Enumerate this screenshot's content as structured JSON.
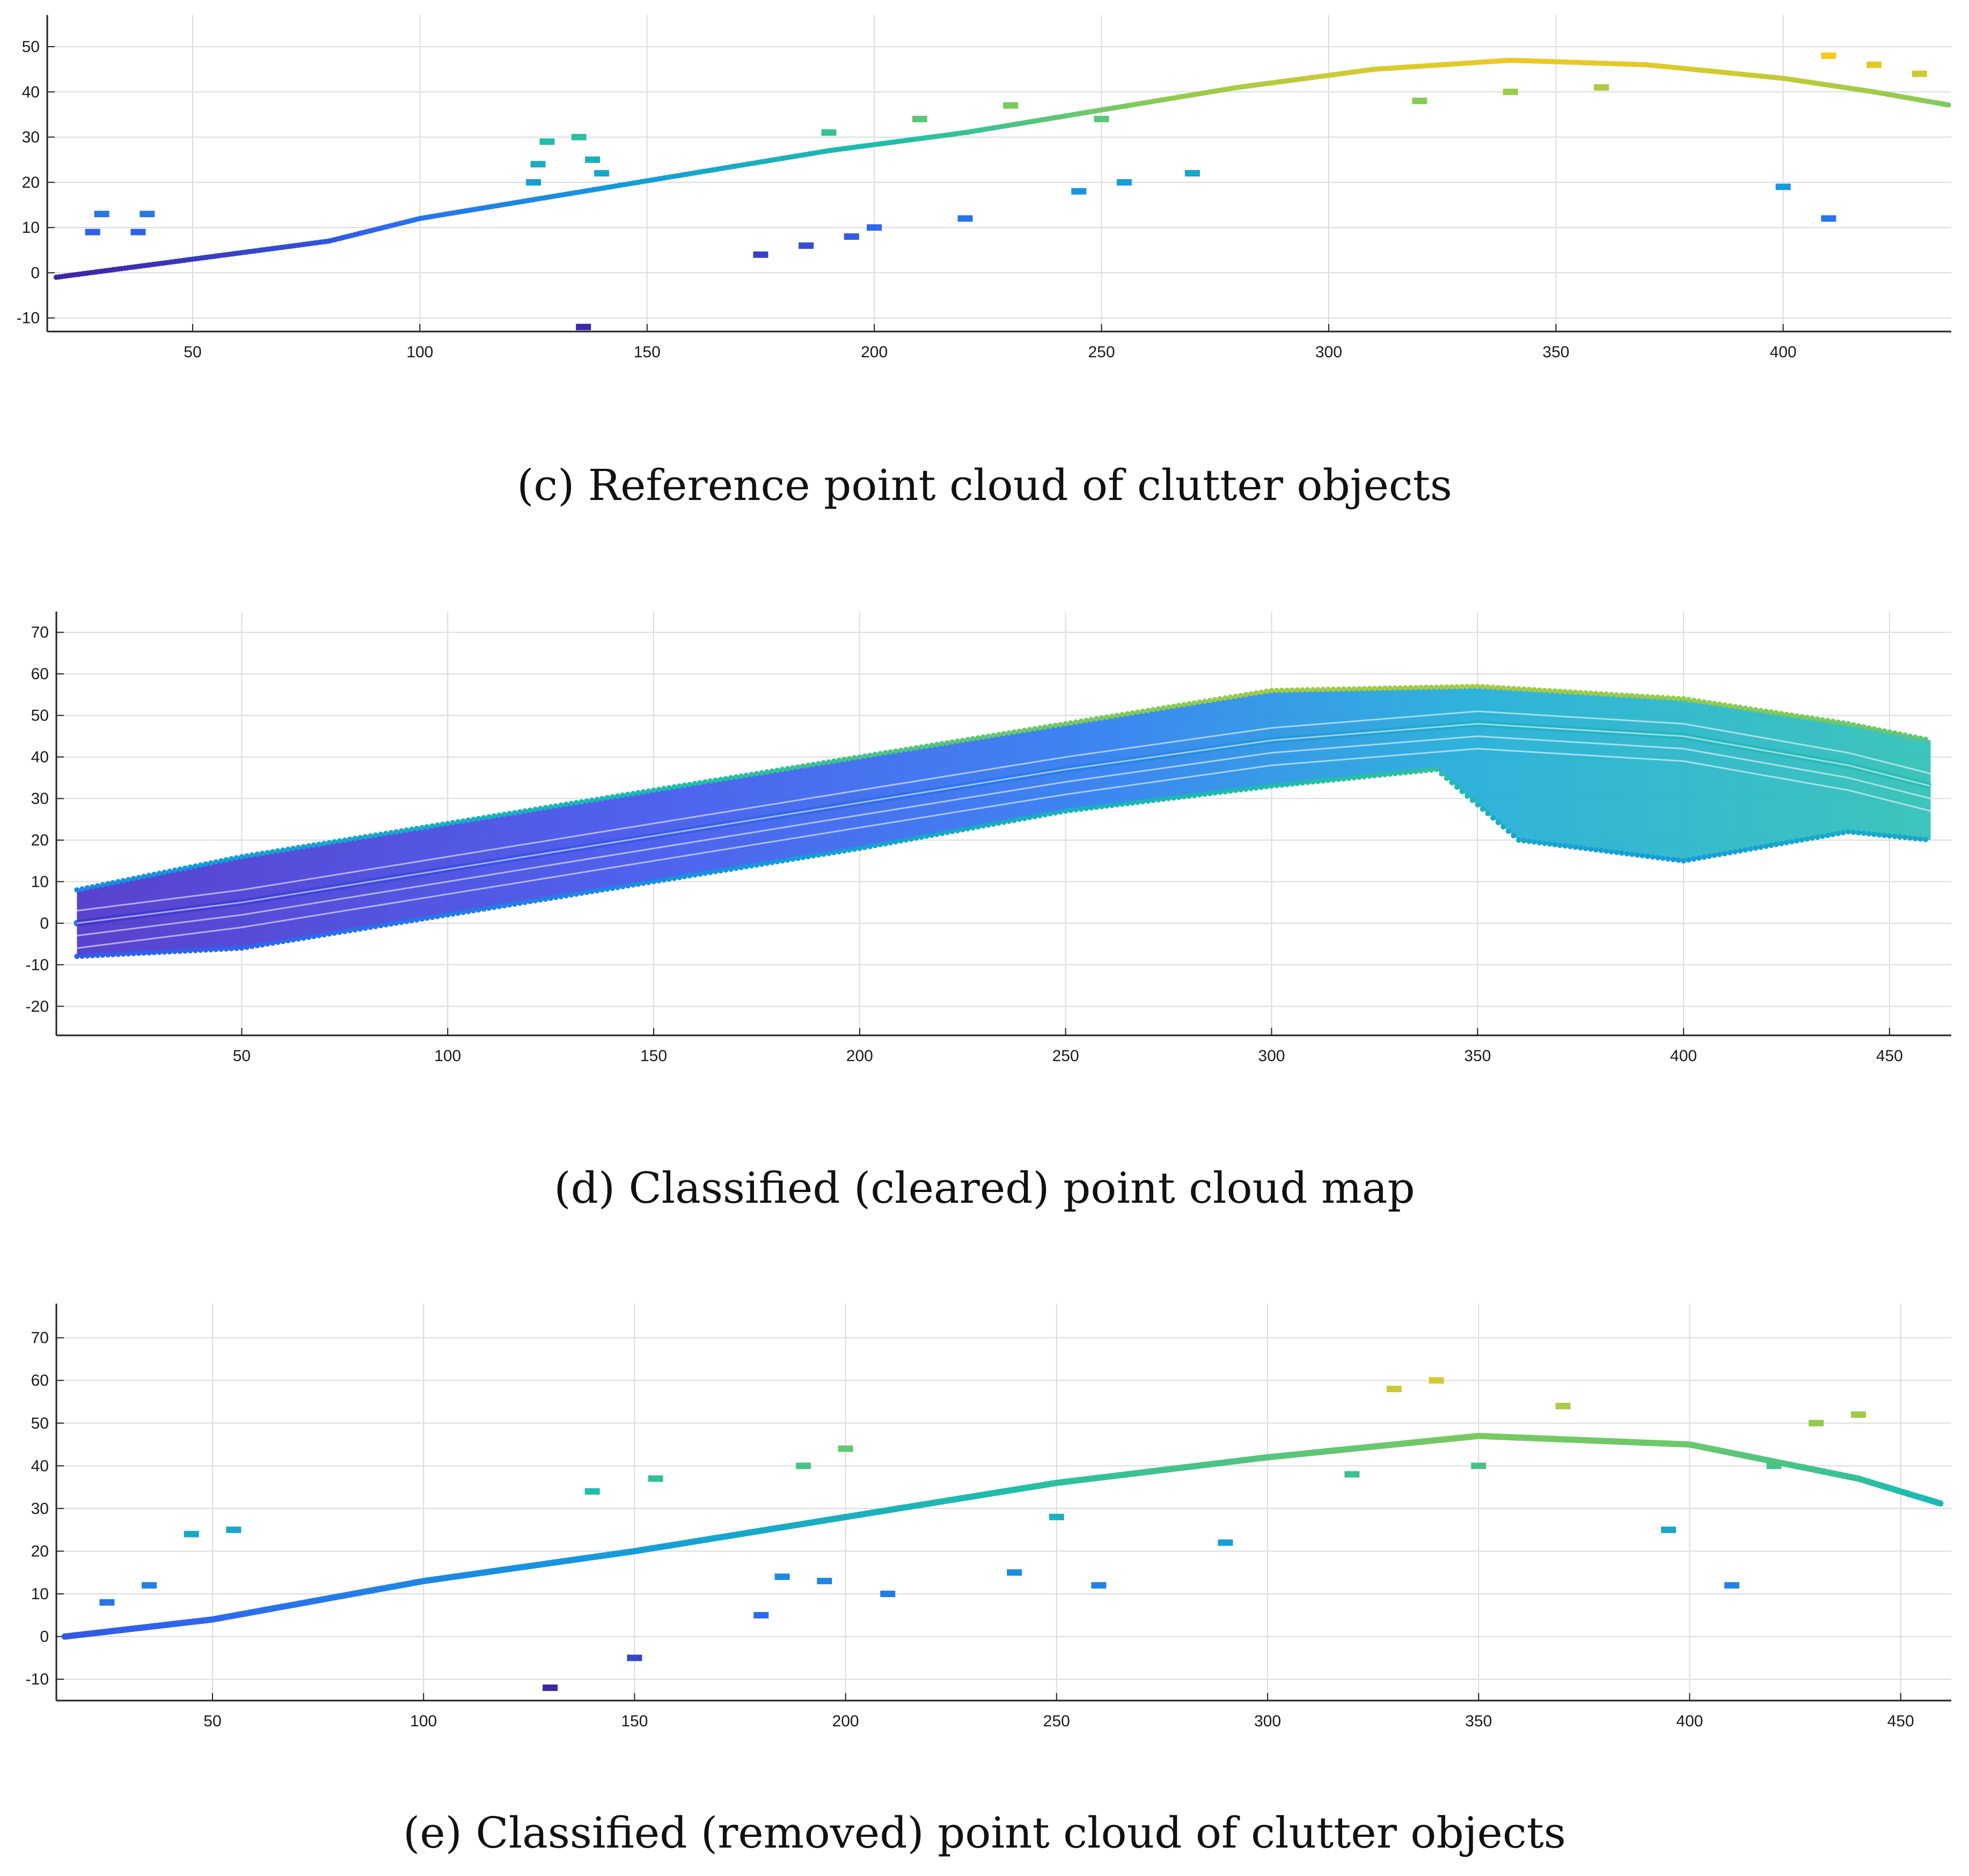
{
  "figure": {
    "panels": [
      {
        "id": "c",
        "caption": "(c) Reference point cloud of clutter objects"
      },
      {
        "id": "d",
        "caption": "(d) Classified (cleared) point cloud map"
      },
      {
        "id": "e",
        "caption": "(e) Classified (removed) point cloud of clutter objects"
      }
    ]
  },
  "chart_data": [
    {
      "type": "scatter",
      "title": "(c) Reference point cloud of clutter objects",
      "xlabel": "",
      "ylabel": "",
      "xlim": [
        18,
        437
      ],
      "ylim": [
        -13,
        57
      ],
      "xticks": [
        50,
        100,
        150,
        200,
        250,
        300,
        350,
        400
      ],
      "yticks": [
        -10,
        0,
        10,
        20,
        30,
        40,
        50
      ],
      "grid": true,
      "colormap": "parula",
      "color_range": [
        0,
        48
      ],
      "series": [
        {
          "name": "road edge curve",
          "points": [
            [
              20,
              -1
            ],
            [
              50,
              3
            ],
            [
              80,
              7
            ],
            [
              100,
              12
            ],
            [
              130,
              17
            ],
            [
              160,
              22
            ],
            [
              190,
              27
            ],
            [
              220,
              31
            ],
            [
              250,
              36
            ],
            [
              280,
              41
            ],
            [
              310,
              45
            ],
            [
              340,
              47
            ],
            [
              370,
              46
            ],
            [
              400,
              43
            ],
            [
              420,
              40
            ],
            [
              437,
              37
            ]
          ]
        },
        {
          "name": "clutter clusters",
          "points": [
            [
              28,
              9
            ],
            [
              38,
              9
            ],
            [
              30,
              13
            ],
            [
              40,
              13
            ],
            [
              125,
              20
            ],
            [
              140,
              22
            ],
            [
              126,
              24
            ],
            [
              138,
              25
            ],
            [
              128,
              29
            ],
            [
              135,
              30
            ],
            [
              175,
              4
            ],
            [
              185,
              6
            ],
            [
              195,
              8
            ],
            [
              200,
              10
            ],
            [
              220,
              12
            ],
            [
              245,
              18
            ],
            [
              255,
              20
            ],
            [
              270,
              22
            ],
            [
              190,
              31
            ],
            [
              210,
              34
            ],
            [
              230,
              37
            ],
            [
              250,
              34
            ],
            [
              320,
              38
            ],
            [
              340,
              40
            ],
            [
              360,
              41
            ],
            [
              410,
              48
            ],
            [
              420,
              46
            ],
            [
              430,
              44
            ],
            [
              400,
              19
            ],
            [
              410,
              12
            ],
            [
              136,
              -12
            ]
          ]
        }
      ]
    },
    {
      "type": "scatter",
      "title": "(d) Classified (cleared) point cloud map",
      "xlabel": "",
      "ylabel": "",
      "xlim": [
        5,
        465
      ],
      "ylim": [
        -27,
        75
      ],
      "xticks": [
        50,
        100,
        150,
        200,
        250,
        300,
        350,
        400,
        450
      ],
      "yticks": [
        -20,
        -10,
        0,
        10,
        20,
        30,
        40,
        50,
        60,
        70
      ],
      "grid": true,
      "colormap": "parula",
      "color_range": [
        -25,
        72
      ],
      "series": [
        {
          "name": "road center",
          "points": [
            [
              10,
              0
            ],
            [
              50,
              5
            ],
            [
              100,
              13
            ],
            [
              150,
              21
            ],
            [
              200,
              29
            ],
            [
              250,
              37
            ],
            [
              300,
              44
            ],
            [
              350,
              48
            ],
            [
              400,
              45
            ],
            [
              440,
              38
            ],
            [
              460,
              33
            ]
          ]
        },
        {
          "name": "upper boundary",
          "points": [
            [
              10,
              8
            ],
            [
              50,
              16
            ],
            [
              100,
              24
            ],
            [
              150,
              32
            ],
            [
              200,
              40
            ],
            [
              250,
              48
            ],
            [
              300,
              56
            ],
            [
              350,
              57
            ],
            [
              400,
              54
            ],
            [
              440,
              48
            ],
            [
              460,
              44
            ]
          ]
        },
        {
          "name": "lower boundary",
          "points": [
            [
              10,
              -8
            ],
            [
              50,
              -6
            ],
            [
              100,
              2
            ],
            [
              150,
              10
            ],
            [
              200,
              18
            ],
            [
              250,
              27
            ],
            [
              300,
              33
            ],
            [
              340,
              37
            ],
            [
              360,
              20
            ],
            [
              400,
              15
            ],
            [
              440,
              22
            ],
            [
              460,
              20
            ]
          ]
        }
      ]
    },
    {
      "type": "scatter",
      "title": "(e) Classified (removed) point cloud of clutter objects",
      "xlabel": "",
      "ylabel": "",
      "xlim": [
        13,
        462
      ],
      "ylim": [
        -15,
        78
      ],
      "xticks": [
        50,
        100,
        150,
        200,
        250,
        300,
        350,
        400,
        450
      ],
      "yticks": [
        -10,
        0,
        10,
        20,
        30,
        40,
        50,
        60,
        70
      ],
      "grid": true,
      "colormap": "parula",
      "color_range": [
        -12,
        65
      ],
      "series": [
        {
          "name": "road center",
          "points": [
            [
              15,
              0
            ],
            [
              50,
              4
            ],
            [
              100,
              13
            ],
            [
              150,
              20
            ],
            [
              200,
              28
            ],
            [
              250,
              36
            ],
            [
              300,
              42
            ],
            [
              350,
              47
            ],
            [
              400,
              45
            ],
            [
              440,
              37
            ],
            [
              460,
              31
            ]
          ]
        },
        {
          "name": "clutter clusters",
          "points": [
            [
              25,
              8
            ],
            [
              35,
              12
            ],
            [
              45,
              24
            ],
            [
              55,
              25
            ],
            [
              140,
              34
            ],
            [
              155,
              37
            ],
            [
              190,
              40
            ],
            [
              200,
              44
            ],
            [
              185,
              14
            ],
            [
              195,
              13
            ],
            [
              210,
              10
            ],
            [
              240,
              15
            ],
            [
              260,
              12
            ],
            [
              290,
              22
            ],
            [
              330,
              58
            ],
            [
              340,
              60
            ],
            [
              370,
              54
            ],
            [
              420,
              40
            ],
            [
              430,
              50
            ],
            [
              440,
              52
            ],
            [
              395,
              25
            ],
            [
              410,
              12
            ],
            [
              130,
              -12
            ],
            [
              150,
              -5
            ],
            [
              180,
              5
            ],
            [
              250,
              28
            ],
            [
              320,
              38
            ],
            [
              350,
              40
            ]
          ]
        }
      ]
    }
  ]
}
